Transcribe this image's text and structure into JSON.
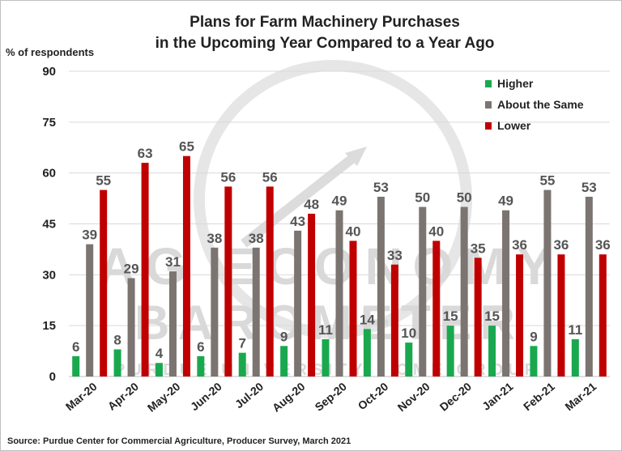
{
  "watermark": {
    "line1": "AG ECONOMY",
    "line2": "BAROMETER",
    "line3": "PURDUE UNIVERSITY · CME GROUP"
  },
  "chart_data": {
    "type": "bar",
    "title": [
      "Plans for Farm Machinery Purchases",
      "in the Upcoming Year Compared to a Year Ago"
    ],
    "ylabel": "% of respondents",
    "xlabel": "",
    "ylim": [
      0,
      90
    ],
    "yticks": [
      0,
      15,
      30,
      45,
      60,
      75,
      90
    ],
    "grid": true,
    "legend_position": "top-right",
    "categories": [
      "Mar-20",
      "Apr-20",
      "May-20",
      "Jun-20",
      "Jul-20",
      "Aug-20",
      "Sep-20",
      "Oct-20",
      "Nov-20",
      "Dec-20",
      "Jan-21",
      "Feb-21",
      "Mar-21"
    ],
    "series": [
      {
        "name": "Higher",
        "color": "#1aa84f",
        "values": [
          6,
          8,
          4,
          6,
          7,
          9,
          11,
          14,
          10,
          15,
          15,
          9,
          11
        ]
      },
      {
        "name": "About the Same",
        "color": "#7b7470",
        "values": [
          39,
          29,
          31,
          38,
          38,
          43,
          49,
          53,
          50,
          50,
          49,
          55,
          53
        ]
      },
      {
        "name": "Lower",
        "color": "#c00000",
        "values": [
          55,
          63,
          65,
          56,
          56,
          48,
          40,
          33,
          40,
          35,
          36,
          36,
          36
        ]
      }
    ],
    "source": "Source: Purdue Center for Commercial Agriculture, Producer Survey, March 2021"
  }
}
